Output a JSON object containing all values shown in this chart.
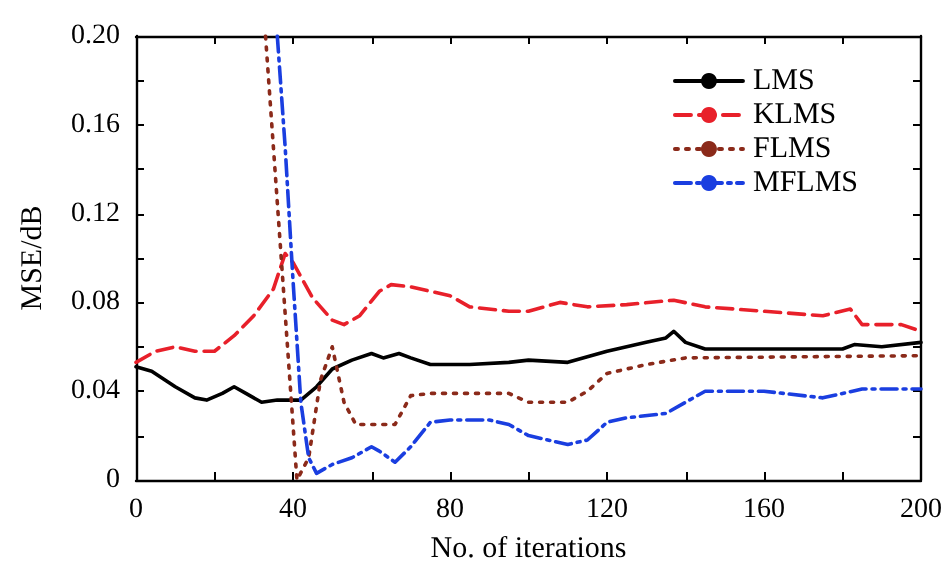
{
  "chart_data": {
    "type": "line",
    "xlabel": "No. of iterations",
    "ylabel": "MSE/dB",
    "xlim": [
      0,
      200
    ],
    "ylim": [
      0,
      0.2
    ],
    "xticks": [
      0,
      {
        "value": 20,
        "label": null
      },
      40,
      {
        "value": 60,
        "label": null
      },
      80,
      {
        "value": 100,
        "label": null
      },
      120,
      {
        "value": 140,
        "label": null
      },
      160,
      {
        "value": 180,
        "label": null
      },
      200
    ],
    "yticks": [
      0,
      {
        "value": 0.02,
        "label": null
      },
      0.04,
      {
        "value": 0.06,
        "label": null
      },
      0.08,
      {
        "value": 0.1,
        "label": null
      },
      0.12,
      {
        "value": 0.14,
        "label": null
      },
      0.16,
      {
        "value": 0.18,
        "label": null
      },
      {
        "value": 0.2,
        "label": "0.20"
      }
    ],
    "grid": false,
    "legend": "top right",
    "marker": "none",
    "series": [
      {
        "name": "LMS",
        "color": "#000000",
        "line_style": "solid",
        "x": [
          0,
          4,
          10,
          15,
          18,
          22,
          25,
          28,
          32,
          36,
          38,
          42,
          46,
          50,
          55,
          60,
          63,
          67,
          70,
          75,
          85,
          95,
          100,
          110,
          120,
          130,
          135,
          137,
          140,
          145,
          160,
          180,
          183,
          190,
          200
        ],
        "values": [
          0.051,
          0.049,
          0.042,
          0.037,
          0.036,
          0.039,
          0.042,
          0.039,
          0.035,
          0.036,
          0.036,
          0.036,
          0.042,
          0.05,
          0.054,
          0.057,
          0.055,
          0.057,
          0.055,
          0.052,
          0.052,
          0.053,
          0.054,
          0.053,
          0.058,
          0.062,
          0.064,
          0.067,
          0.062,
          0.059,
          0.059,
          0.059,
          0.061,
          0.06,
          0.062
        ]
      },
      {
        "name": "KLMS",
        "color": "#e8202a",
        "line_style": "dashed",
        "x": [
          0,
          5,
          10,
          15,
          20,
          25,
          30,
          35,
          38,
          40,
          45,
          50,
          53,
          57,
          62,
          65,
          70,
          80,
          85,
          95,
          100,
          108,
          115,
          125,
          137,
          145,
          160,
          175,
          182,
          185,
          195,
          200
        ],
        "values": [
          0.053,
          0.058,
          0.06,
          0.058,
          0.058,
          0.065,
          0.074,
          0.086,
          0.102,
          0.098,
          0.082,
          0.072,
          0.07,
          0.074,
          0.085,
          0.088,
          0.087,
          0.083,
          0.078,
          0.076,
          0.076,
          0.08,
          0.078,
          0.079,
          0.081,
          0.078,
          0.076,
          0.074,
          0.077,
          0.07,
          0.07,
          0.067
        ]
      },
      {
        "name": "FLMS",
        "color": "#8b2a1a",
        "line_style": "dotted",
        "x": [
          33,
          35,
          37,
          39,
          41,
          44,
          47,
          50,
          53,
          56,
          62,
          66,
          70,
          75,
          95,
          100,
          110,
          115,
          120,
          130,
          140,
          200
        ],
        "values": [
          0.2,
          0.15,
          0.1,
          0.05,
          0,
          0.01,
          0.045,
          0.06,
          0.035,
          0.025,
          0.025,
          0.025,
          0.038,
          0.039,
          0.039,
          0.035,
          0.035,
          0.04,
          0.048,
          0.052,
          0.055,
          0.056
        ]
      },
      {
        "name": "MFLMS",
        "color": "#1a3ee0",
        "line_style": "dashdot",
        "x": [
          36,
          38,
          40,
          42,
          44,
          46,
          50,
          55,
          60,
          62,
          66,
          70,
          75,
          80,
          90,
          95,
          100,
          110,
          115,
          120,
          125,
          135,
          140,
          145,
          160,
          175,
          180,
          185,
          200
        ],
        "values": [
          0.2,
          0.15,
          0.09,
          0.035,
          0.01,
          0.003,
          0.007,
          0.01,
          0.015,
          0.013,
          0.008,
          0.015,
          0.026,
          0.027,
          0.027,
          0.025,
          0.02,
          0.016,
          0.018,
          0.026,
          0.028,
          0.03,
          0.035,
          0.04,
          0.04,
          0.037,
          0.039,
          0.041,
          0.041
        ]
      }
    ]
  }
}
